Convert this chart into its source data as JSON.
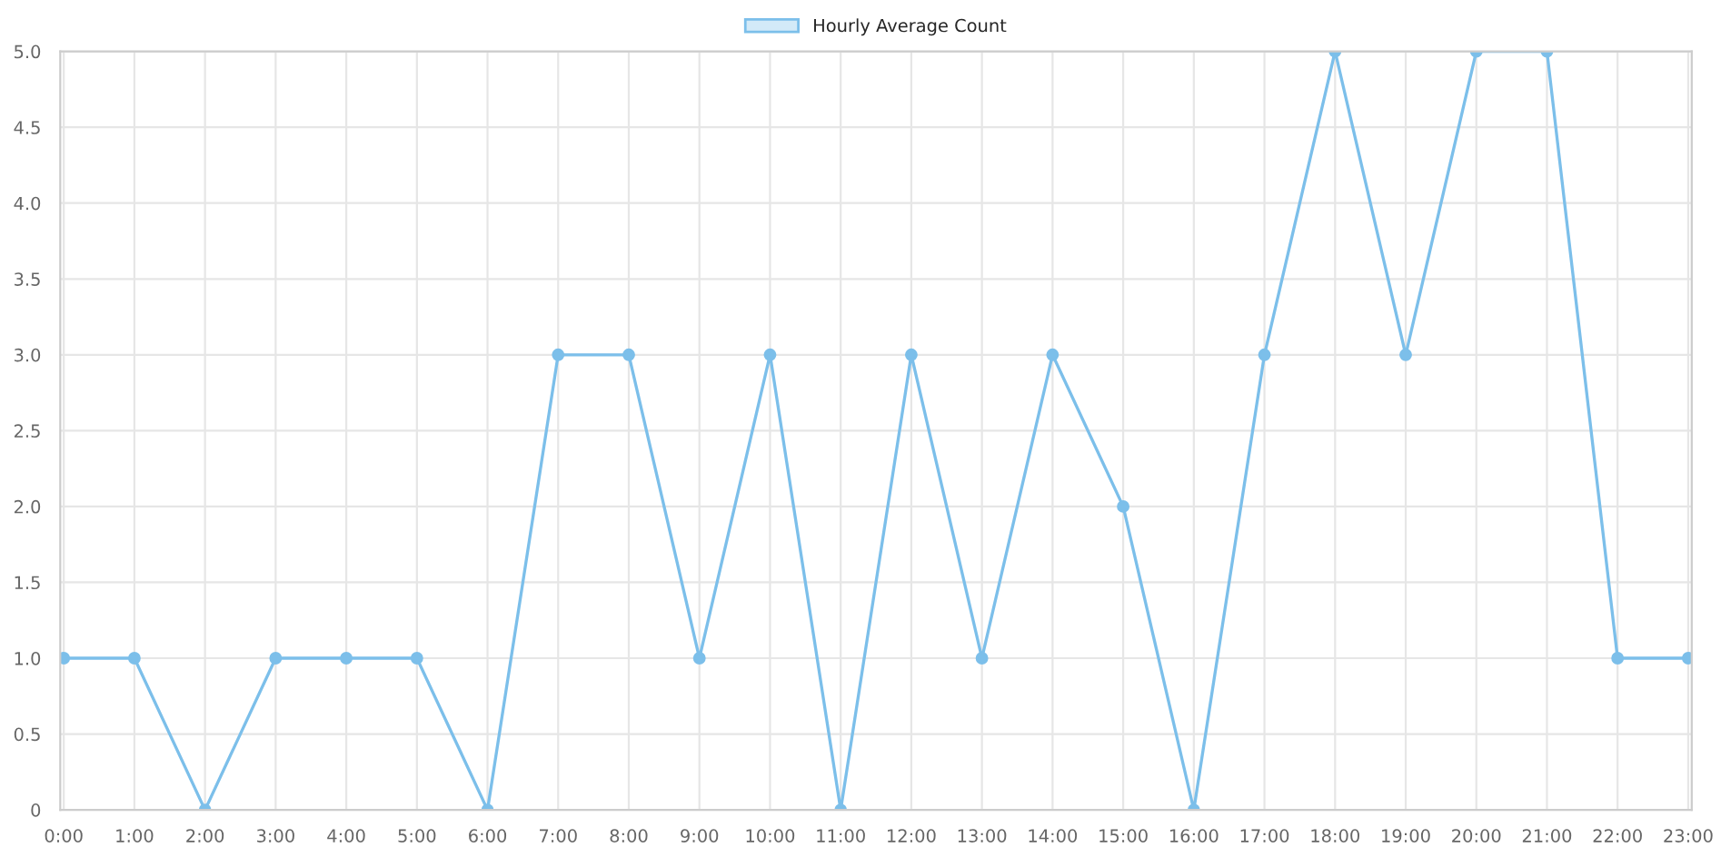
{
  "chart_data": {
    "type": "line",
    "categories": [
      "0:00",
      "1:00",
      "2:00",
      "3:00",
      "4:00",
      "5:00",
      "6:00",
      "7:00",
      "8:00",
      "9:00",
      "10:00",
      "11:00",
      "12:00",
      "13:00",
      "14:00",
      "15:00",
      "16:00",
      "17:00",
      "18:00",
      "19:00",
      "20:00",
      "21:00",
      "22:00",
      "23:00"
    ],
    "series": [
      {
        "name": "Hourly Average Count",
        "color": "#7cbfea",
        "values": [
          1,
          1,
          0,
          1,
          1,
          1,
          0,
          3,
          3,
          1,
          3,
          0,
          3,
          1,
          3,
          2,
          0,
          3,
          5,
          3,
          5,
          5,
          1,
          1
        ]
      }
    ],
    "ylim": [
      0,
      5
    ],
    "yticks": [
      0,
      {
        "value": 0.5,
        "label": "0.5"
      },
      {
        "value": 1,
        "label": "1.0"
      },
      {
        "value": 1.5,
        "label": "1.5"
      },
      {
        "value": 2,
        "label": "2.0"
      },
      {
        "value": 2.5,
        "label": "2.5"
      },
      {
        "value": 3,
        "label": "3.0"
      },
      {
        "value": 3.5,
        "label": "3.5"
      },
      {
        "value": 4,
        "label": "4.0"
      },
      {
        "value": 4.5,
        "label": "4.5"
      },
      {
        "value": 5,
        "label": "5.0"
      }
    ],
    "grid": true,
    "legend": "top",
    "marker": "circle",
    "line_style": "solid"
  }
}
